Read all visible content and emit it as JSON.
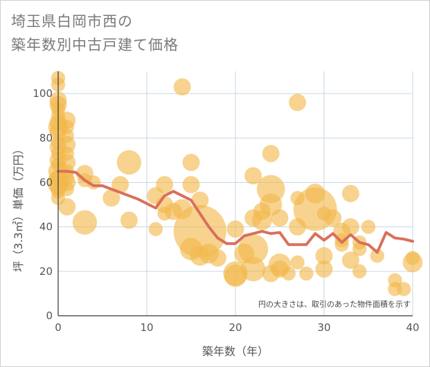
{
  "chart_data": {
    "type": "scatter",
    "title": [
      "埼玉県白岡市西の",
      "築年数別中古戸建て価格"
    ],
    "xlabel": "築年数（年）",
    "ylabel": "坪（3.3㎡）単価（万円）",
    "xlim": [
      0,
      40
    ],
    "ylim": [
      0,
      110
    ],
    "xticks": [
      0,
      10,
      20,
      30,
      40
    ],
    "yticks": [
      0,
      20,
      40,
      60,
      80,
      100
    ],
    "grid": true,
    "note": "円の大きさは、取引のあった物件面積を示す",
    "colors": {
      "bubble": "#f2b84b",
      "line": "#d9705a",
      "grid": "#c9d6e3"
    },
    "bubbles": [
      {
        "x": 0,
        "y": 107,
        "size": 2
      },
      {
        "x": 0,
        "y": 104,
        "size": 2
      },
      {
        "x": 0,
        "y": 97,
        "size": 3
      },
      {
        "x": 0,
        "y": 95,
        "size": 3
      },
      {
        "x": 0,
        "y": 93,
        "size": 2
      },
      {
        "x": 0,
        "y": 90,
        "size": 2
      },
      {
        "x": 0,
        "y": 87,
        "size": 3
      },
      {
        "x": 0,
        "y": 85,
        "size": 4
      },
      {
        "x": 0,
        "y": 83,
        "size": 3
      },
      {
        "x": 0,
        "y": 78,
        "size": 2
      },
      {
        "x": 0,
        "y": 76,
        "size": 3
      },
      {
        "x": 0,
        "y": 73,
        "size": 2
      },
      {
        "x": 0,
        "y": 70,
        "size": 3
      },
      {
        "x": 0,
        "y": 68,
        "size": 2
      },
      {
        "x": 0,
        "y": 65,
        "size": 4
      },
      {
        "x": 0,
        "y": 62,
        "size": 3
      },
      {
        "x": 0,
        "y": 60,
        "size": 5
      },
      {
        "x": 0,
        "y": 58,
        "size": 3
      },
      {
        "x": 0,
        "y": 56,
        "size": 2
      },
      {
        "x": 0,
        "y": 53,
        "size": 2
      },
      {
        "x": 1,
        "y": 88,
        "size": 3
      },
      {
        "x": 1,
        "y": 85,
        "size": 2
      },
      {
        "x": 1,
        "y": 81,
        "size": 2
      },
      {
        "x": 1,
        "y": 77,
        "size": 3
      },
      {
        "x": 1,
        "y": 73,
        "size": 2
      },
      {
        "x": 1,
        "y": 69,
        "size": 3
      },
      {
        "x": 1,
        "y": 65,
        "size": 2
      },
      {
        "x": 1,
        "y": 62,
        "size": 2
      },
      {
        "x": 1,
        "y": 60,
        "size": 3
      },
      {
        "x": 1,
        "y": 57,
        "size": 2
      },
      {
        "x": 1,
        "y": 49,
        "size": 3
      },
      {
        "x": 3,
        "y": 64,
        "size": 3
      },
      {
        "x": 3,
        "y": 61,
        "size": 2
      },
      {
        "x": 3,
        "y": 42,
        "size": 6
      },
      {
        "x": 4,
        "y": 60,
        "size": 2
      },
      {
        "x": 6,
        "y": 53,
        "size": 3
      },
      {
        "x": 7,
        "y": 59,
        "size": 3
      },
      {
        "x": 8,
        "y": 69,
        "size": 6
      },
      {
        "x": 8,
        "y": 43,
        "size": 3
      },
      {
        "x": 11,
        "y": 54,
        "size": 3
      },
      {
        "x": 11,
        "y": 39,
        "size": 2
      },
      {
        "x": 12,
        "y": 59,
        "size": 3
      },
      {
        "x": 12,
        "y": 50,
        "size": 3
      },
      {
        "x": 12,
        "y": 46,
        "size": 2
      },
      {
        "x": 13,
        "y": 47,
        "size": 3
      },
      {
        "x": 14,
        "y": 103,
        "size": 3
      },
      {
        "x": 14,
        "y": 48,
        "size": 4
      },
      {
        "x": 15,
        "y": 69,
        "size": 3
      },
      {
        "x": 15,
        "y": 59,
        "size": 3
      },
      {
        "x": 15,
        "y": 30,
        "size": 5
      },
      {
        "x": 16,
        "y": 38,
        "size": 28
      },
      {
        "x": 16,
        "y": 52,
        "size": 3
      },
      {
        "x": 16,
        "y": 27,
        "size": 4
      },
      {
        "x": 17,
        "y": 28,
        "size": 4
      },
      {
        "x": 18,
        "y": 26,
        "size": 3
      },
      {
        "x": 20,
        "y": 39,
        "size": 3
      },
      {
        "x": 20,
        "y": 19,
        "size": 6
      },
      {
        "x": 20,
        "y": 18,
        "size": 5
      },
      {
        "x": 21,
        "y": 28,
        "size": 4
      },
      {
        "x": 22,
        "y": 63,
        "size": 3
      },
      {
        "x": 22,
        "y": 44,
        "size": 3
      },
      {
        "x": 22,
        "y": 30,
        "size": 9
      },
      {
        "x": 22,
        "y": 21,
        "size": 6
      },
      {
        "x": 23,
        "y": 47,
        "size": 3
      },
      {
        "x": 23,
        "y": 43,
        "size": 4
      },
      {
        "x": 24,
        "y": 73,
        "size": 3
      },
      {
        "x": 24,
        "y": 57,
        "size": 8
      },
      {
        "x": 24,
        "y": 50,
        "size": 5
      },
      {
        "x": 24,
        "y": 19,
        "size": 3
      },
      {
        "x": 25,
        "y": 44,
        "size": 3
      },
      {
        "x": 25,
        "y": 23,
        "size": 5
      },
      {
        "x": 25,
        "y": 21,
        "size": 3
      },
      {
        "x": 26,
        "y": 19,
        "size": 2
      },
      {
        "x": 27,
        "y": 96,
        "size": 3
      },
      {
        "x": 27,
        "y": 53,
        "size": 2
      },
      {
        "x": 27,
        "y": 40,
        "size": 3
      },
      {
        "x": 27,
        "y": 24,
        "size": 2
      },
      {
        "x": 28,
        "y": 19,
        "size": 2
      },
      {
        "x": 29,
        "y": 48,
        "size": 19
      },
      {
        "x": 29,
        "y": 55,
        "size": 4
      },
      {
        "x": 30,
        "y": 46,
        "size": 2
      },
      {
        "x": 30,
        "y": 27,
        "size": 3
      },
      {
        "x": 30,
        "y": 21,
        "size": 3
      },
      {
        "x": 31,
        "y": 44,
        "size": 3
      },
      {
        "x": 32,
        "y": 38,
        "size": 3
      },
      {
        "x": 32,
        "y": 34,
        "size": 2
      },
      {
        "x": 32,
        "y": 32,
        "size": 2
      },
      {
        "x": 33,
        "y": 55,
        "size": 3
      },
      {
        "x": 33,
        "y": 40,
        "size": 3
      },
      {
        "x": 33,
        "y": 25,
        "size": 3
      },
      {
        "x": 34,
        "y": 33,
        "size": 2
      },
      {
        "x": 34,
        "y": 30,
        "size": 2
      },
      {
        "x": 34,
        "y": 20,
        "size": 2
      },
      {
        "x": 35,
        "y": 40,
        "size": 2
      },
      {
        "x": 36,
        "y": 27,
        "size": 2
      },
      {
        "x": 38,
        "y": 16,
        "size": 2
      },
      {
        "x": 38,
        "y": 12,
        "size": 2
      },
      {
        "x": 39,
        "y": 12,
        "size": 2
      },
      {
        "x": 40,
        "y": 24,
        "size": 4
      },
      {
        "x": 40,
        "y": 26,
        "size": 2
      }
    ],
    "series": [
      {
        "type": "line",
        "x": [
          0,
          1,
          2,
          3,
          4,
          5,
          6,
          7,
          8,
          9,
          10,
          11,
          12,
          13,
          14,
          15,
          16,
          17,
          18,
          19,
          20,
          21,
          22,
          23,
          24,
          25,
          26,
          27,
          28,
          29,
          30,
          31,
          32,
          33,
          34,
          35,
          36,
          37,
          38,
          39,
          40
        ],
        "y": [
          65,
          65,
          64.5,
          61,
          58.5,
          58.5,
          57,
          55.5,
          54,
          52.5,
          50.5,
          48.5,
          54,
          56,
          54,
          52,
          46,
          40,
          35,
          32.5,
          32.5,
          36,
          37,
          38,
          37,
          37.5,
          32,
          32,
          32,
          37,
          34,
          37,
          33,
          36.5,
          33,
          32,
          28.5,
          37.5,
          35,
          34.5,
          33.5
        ]
      }
    ]
  }
}
